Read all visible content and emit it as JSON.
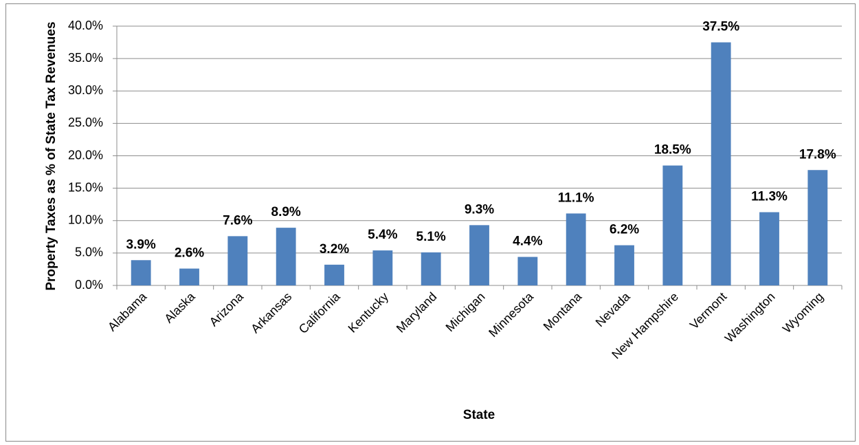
{
  "chart_data": {
    "type": "bar",
    "x_label": "State",
    "y_label": "Property Taxes as % of State Tax Revenues",
    "categories": [
      "Alabama",
      "Alaska",
      "Arizona",
      "Arkansas",
      "California",
      "Kentucky",
      "Maryland",
      "Michigan",
      "Minnesota",
      "Montana",
      "Nevada",
      "New Hampshire",
      "Vermont",
      "Washington",
      "Wyoming"
    ],
    "values": [
      3.9,
      2.6,
      7.6,
      8.9,
      3.2,
      5.4,
      5.1,
      9.3,
      4.4,
      11.1,
      6.2,
      18.5,
      37.5,
      11.3,
      17.8
    ],
    "value_labels": [
      "3.9%",
      "2.6%",
      "7.6%",
      "8.9%",
      "3.2%",
      "5.4%",
      "5.1%",
      "9.3%",
      "4.4%",
      "11.1%",
      "6.2%",
      "18.5%",
      "37.5%",
      "11.3%",
      "17.8%"
    ],
    "color": "#4f81bd",
    "ylim": [
      0,
      40
    ],
    "yticks": [
      {
        "value": 0,
        "label": "0.0%"
      },
      {
        "value": 5,
        "label": "5.0%"
      },
      {
        "value": 10,
        "label": "10.0%"
      },
      {
        "value": 15,
        "label": "15.0%"
      },
      {
        "value": 20,
        "label": "20.0%"
      },
      {
        "value": 25,
        "label": "25.0%"
      },
      {
        "value": 30,
        "label": "30.0%"
      },
      {
        "value": 35,
        "label": "35.0%"
      },
      {
        "value": 40,
        "label": "40.0%"
      }
    ],
    "grid": true
  }
}
